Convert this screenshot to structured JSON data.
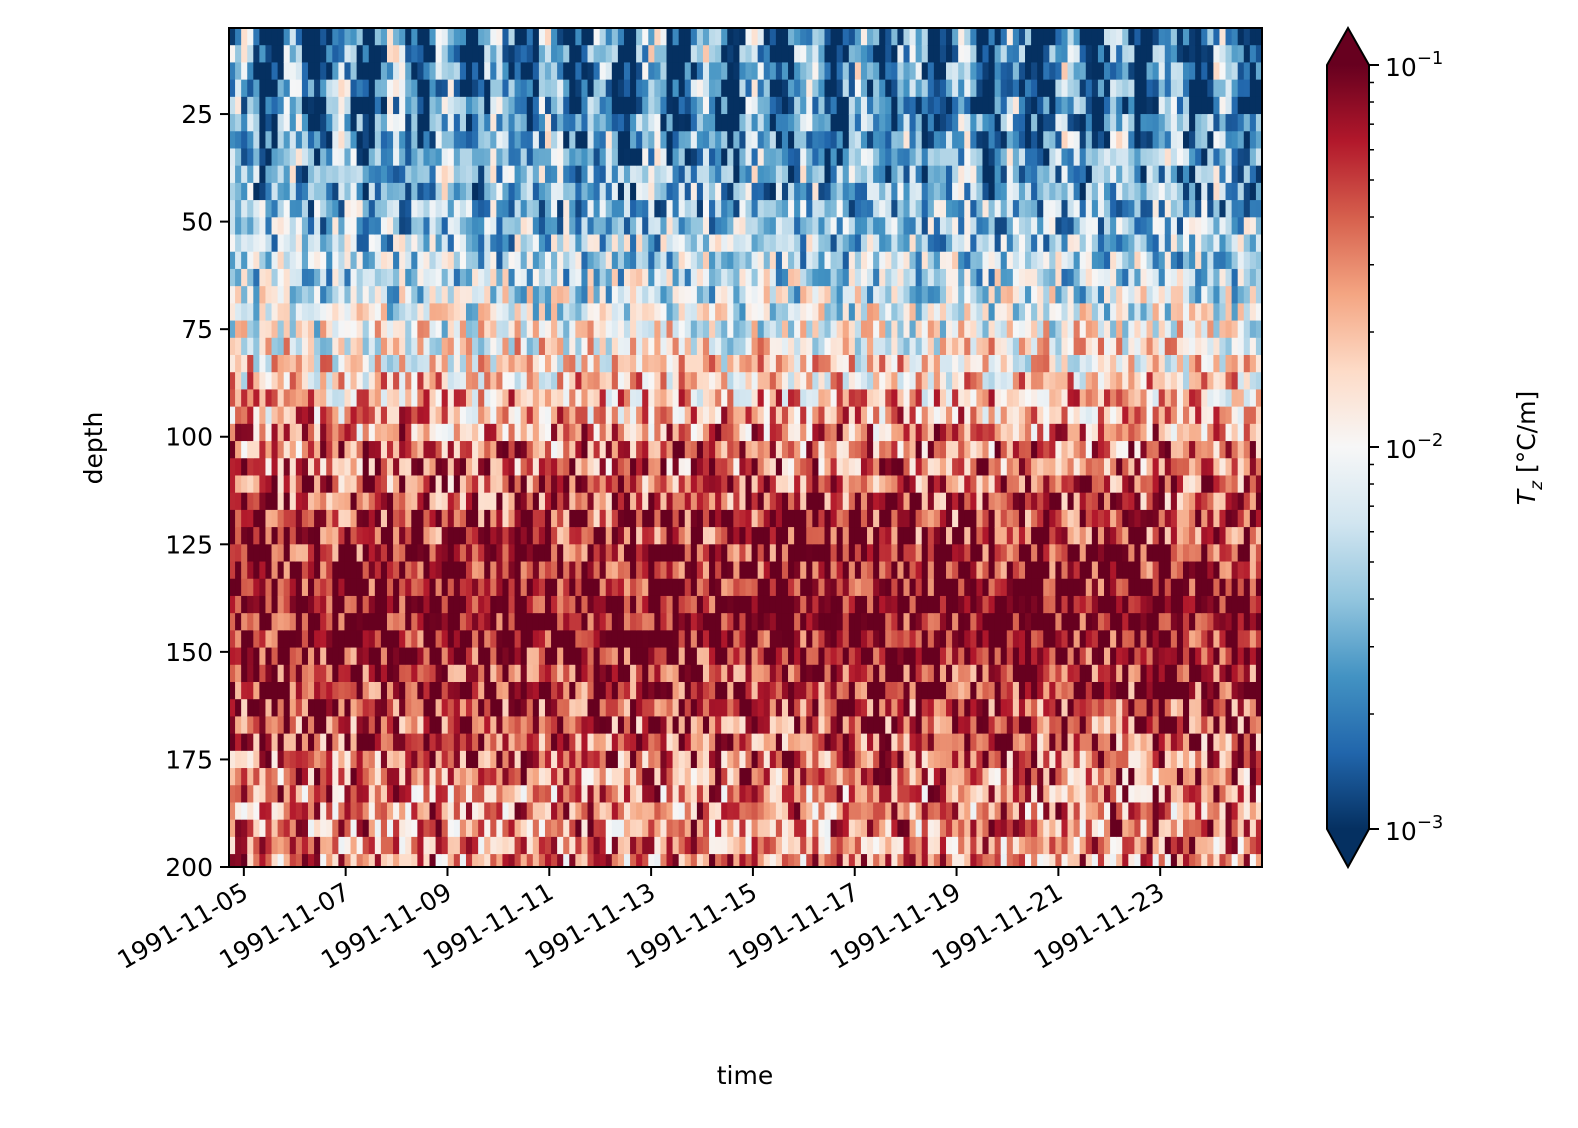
{
  "chart_data": {
    "type": "heatmap",
    "title": "",
    "xlabel": "time",
    "ylabel": "depth",
    "x_axis": {
      "range": [
        "1991-11-04T17:00",
        "1991-11-25T00:00"
      ],
      "ticks": [
        "1991-11-05",
        "1991-11-07",
        "1991-11-09",
        "1991-11-11",
        "1991-11-13",
        "1991-11-15",
        "1991-11-17",
        "1991-11-19",
        "1991-11-21",
        "1991-11-23"
      ]
    },
    "y_axis": {
      "range": [
        5,
        200
      ],
      "inverted": true,
      "ticks": [
        25,
        50,
        75,
        100,
        125,
        150,
        175,
        200
      ]
    },
    "grid": false,
    "colorbar": {
      "label": "T_z [°C/m]",
      "label_main": "T",
      "label_sub": "z",
      "label_unit": " [°C/m]",
      "scale": "log",
      "range": [
        0.001,
        0.1
      ],
      "extend": "both",
      "colormap": "RdBu_r",
      "ticks": [
        {
          "value": 0.1,
          "base": "10",
          "exponent": "−1"
        },
        {
          "value": 0.01,
          "base": "10",
          "exponent": "−2"
        },
        {
          "value": 0.001,
          "base": "10",
          "exponent": "−3"
        }
      ]
    },
    "colors": {
      "low": "#053061",
      "mid": "#f7f7f7",
      "high": "#67001f"
    },
    "value_structure": [
      {
        "depth": [
          5,
          40
        ],
        "typical_Tz": 0.002
      },
      {
        "depth": [
          40,
          90
        ],
        "typical_Tz": 0.006
      },
      {
        "depth": [
          90,
          110
        ],
        "typical_Tz": 0.03
      },
      {
        "depth": [
          110,
          170
        ],
        "typical_Tz": 0.1
      },
      {
        "depth": [
          170,
          200
        ],
        "typical_Tz": 0.03
      }
    ]
  }
}
